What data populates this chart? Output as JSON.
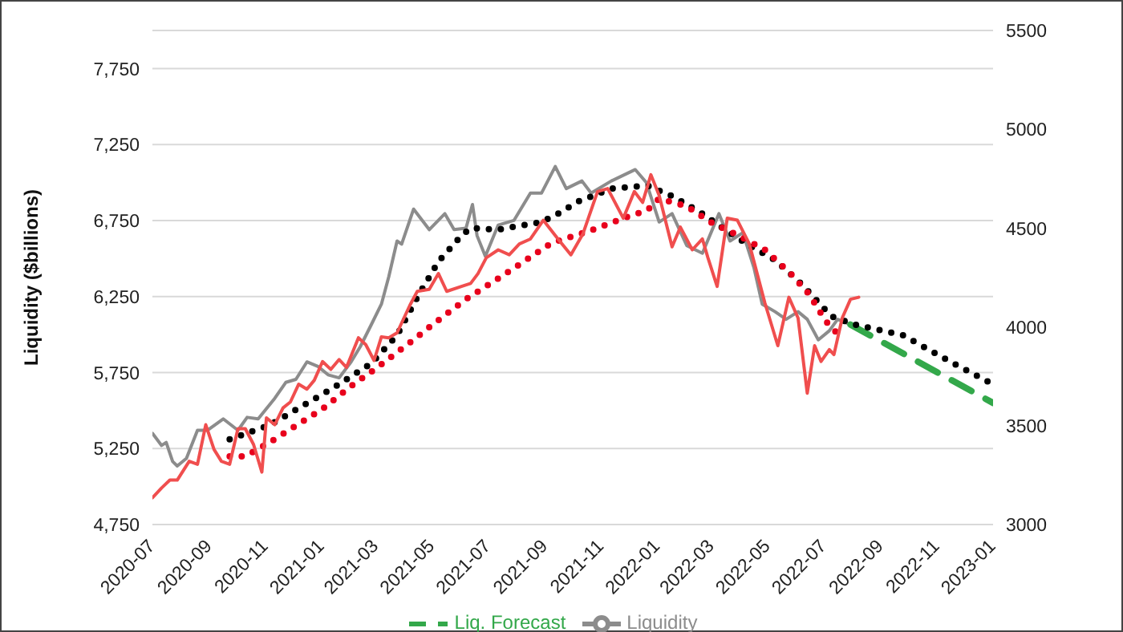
{
  "chart_data": {
    "type": "line",
    "ylabel": "Liquidity ($billions)",
    "xlim": [
      "2020-07",
      "2023-01"
    ],
    "xticks": [
      "2020-07",
      "2020-09",
      "2020-11",
      "2021-01",
      "2021-03",
      "2021-05",
      "2021-07",
      "2021-09",
      "2021-11",
      "2022-01",
      "2022-03",
      "2022-05",
      "2022-07",
      "2022-09",
      "2022-11",
      "2023-01"
    ],
    "ylim": [
      4750,
      8000
    ],
    "yticks": [
      {
        "value": 4750,
        "label": "4,750"
      },
      {
        "value": 5250,
        "label": "5,250"
      },
      {
        "value": 5750,
        "label": "5,750"
      },
      {
        "value": 6250,
        "label": "6,250"
      },
      {
        "value": 6750,
        "label": "6,750"
      },
      {
        "value": 7250,
        "label": "7,250"
      },
      {
        "value": 7750,
        "label": "7,750"
      }
    ],
    "y2lim": [
      3000,
      5500
    ],
    "y2ticks": [
      3000,
      3500,
      4000,
      4500,
      5000,
      5500
    ],
    "grid": "y",
    "legend": "bottom",
    "series": [
      {
        "name": "Liquidity",
        "color": "#8c8c8c",
        "line_style": "solid",
        "x": [
          "2020-07-01",
          "2020-07-11",
          "2020-07-16",
          "2020-07-23",
          "2020-07-28",
          "2020-08-07",
          "2020-08-19",
          "2020-08-30",
          "2020-09-16",
          "2020-10-02",
          "2020-10-12",
          "2020-10-24",
          "2020-11-11",
          "2020-11-23",
          "2020-12-04",
          "2020-12-16",
          "2020-12-28",
          "2021-01-08",
          "2021-01-20",
          "2021-02-02",
          "2021-02-12",
          "2021-02-24",
          "2021-03-07",
          "2021-03-15",
          "2021-03-24",
          "2021-03-29",
          "2021-04-11",
          "2021-04-28",
          "2021-05-15",
          "2021-05-25",
          "2021-06-07",
          "2021-06-14",
          "2021-06-19",
          "2021-06-28",
          "2021-07-12",
          "2021-07-29",
          "2021-08-16",
          "2021-08-28",
          "2021-09-12",
          "2021-09-24",
          "2021-10-11",
          "2021-10-21",
          "2021-11-12",
          "2021-12-08",
          "2021-12-20",
          "2022-01-03",
          "2022-01-17",
          "2022-02-02",
          "2022-02-19",
          "2022-03-09",
          "2022-03-21",
          "2022-04-04",
          "2022-04-16",
          "2022-04-25",
          "2022-05-09",
          "2022-05-21",
          "2022-06-03",
          "2022-06-13",
          "2022-06-25",
          "2022-07-07",
          "2022-07-16",
          "2022-07-30"
        ],
        "values": [
          5350,
          5270,
          5290,
          5165,
          5135,
          5185,
          5370,
          5370,
          5445,
          5370,
          5455,
          5445,
          5580,
          5685,
          5705,
          5820,
          5790,
          5735,
          5715,
          5820,
          5920,
          6065,
          6200,
          6380,
          6615,
          6595,
          6825,
          6690,
          6795,
          6690,
          6700,
          6855,
          6650,
          6515,
          6720,
          6750,
          6930,
          6930,
          7105,
          6960,
          7010,
          6930,
          7010,
          7085,
          7000,
          6740,
          6795,
          6585,
          6535,
          6795,
          6615,
          6670,
          6440,
          6200,
          6150,
          6100,
          6150,
          6100,
          5965,
          6025,
          6100,
          6065
        ]
      },
      {
        "name": "Liq. Forecast",
        "color": "#33a84a",
        "line_style": "dashed",
        "x": [
          "2022-07-30",
          "2023-01-01"
        ],
        "values": [
          6065,
          5550
        ]
      },
      {
        "color": "#000000",
        "line_style": "dotted",
        "x": [
          "2020-09-23",
          "2020-11-06",
          "2020-12-04",
          "2021-01-14",
          "2021-02-24",
          "2021-03-24",
          "2021-04-16",
          "2021-05-08",
          "2021-06-02",
          "2021-06-12",
          "2021-07-12",
          "2021-08-28",
          "2021-09-15",
          "2021-10-07",
          "2021-11-12",
          "2021-12-21",
          "2022-01-19",
          "2022-02-19",
          "2022-03-13",
          "2022-04-11",
          "2022-05-09",
          "2022-06-08",
          "2022-07-09",
          "2022-08-04",
          "2022-09-25",
          "2022-11-16",
          "2022-12-28"
        ],
        "values": [
          5310,
          5405,
          5505,
          5650,
          5810,
          5995,
          6255,
          6480,
          6650,
          6700,
          6690,
          6740,
          6795,
          6875,
          6960,
          6980,
          6905,
          6795,
          6700,
          6585,
          6490,
          6325,
          6120,
          6065,
          5995,
          5820,
          5685
        ]
      },
      {
        "color": "#e8001c",
        "line_style": "dotted",
        "axis": "y2",
        "x": [
          "2020-09-23",
          "2020-10-10",
          "2020-11-07",
          "2020-12-04",
          "2021-01-02",
          "2021-02-02",
          "2021-03-01",
          "2021-04-04",
          "2021-05-04",
          "2021-06-07",
          "2021-07-07",
          "2021-08-07",
          "2021-09-08",
          "2021-10-19",
          "2021-11-25",
          "2021-12-21",
          "2022-01-03",
          "2022-02-02",
          "2022-02-28",
          "2022-03-29",
          "2022-04-28",
          "2022-05-26",
          "2022-06-15",
          "2022-07-03",
          "2022-07-16"
        ],
        "values": [
          3345,
          3345,
          3420,
          3500,
          3585,
          3700,
          3790,
          3910,
          4020,
          4140,
          4230,
          4325,
          4425,
          4485,
          4550,
          4590,
          4650,
          4610,
          4530,
          4465,
          4390,
          4270,
          4165,
          4030,
          3965
        ]
      },
      {
        "color": "#f04e4e",
        "line_style": "solid",
        "axis": "y2",
        "x": [
          "2020-07-01",
          "2020-07-11",
          "2020-07-20",
          "2020-07-28",
          "2020-08-10",
          "2020-08-19",
          "2020-08-28",
          "2020-09-06",
          "2020-09-14",
          "2020-09-23",
          "2020-10-02",
          "2020-10-10",
          "2020-10-19",
          "2020-10-28",
          "2020-11-02",
          "2020-11-11",
          "2020-11-20",
          "2020-11-28",
          "2020-12-07",
          "2020-12-16",
          "2020-12-24",
          "2021-01-02",
          "2021-01-11",
          "2021-01-20",
          "2021-01-28",
          "2021-02-10",
          "2021-02-18",
          "2021-02-27",
          "2021-03-07",
          "2021-03-15",
          "2021-03-24",
          "2021-04-07",
          "2021-04-15",
          "2021-04-28",
          "2021-05-08",
          "2021-05-17",
          "2021-06-02",
          "2021-06-12",
          "2021-06-20",
          "2021-06-29",
          "2021-07-12",
          "2021-07-24",
          "2021-08-04",
          "2021-08-16",
          "2021-08-30",
          "2021-09-15",
          "2021-09-29",
          "2021-10-12",
          "2021-10-28",
          "2021-11-08",
          "2021-11-25",
          "2021-12-07",
          "2021-12-16",
          "2021-12-25",
          "2022-01-03",
          "2022-01-17",
          "2022-01-26",
          "2022-02-08",
          "2022-02-19",
          "2022-02-25",
          "2022-03-07",
          "2022-03-18",
          "2022-03-29",
          "2022-04-11",
          "2022-04-28",
          "2022-05-12",
          "2022-05-24",
          "2022-06-03",
          "2022-06-13",
          "2022-06-21",
          "2022-06-28",
          "2022-07-07",
          "2022-07-12",
          "2022-07-21",
          "2022-07-30",
          "2022-08-08"
        ],
        "values": [
          3135,
          3185,
          3225,
          3225,
          3320,
          3305,
          3505,
          3380,
          3320,
          3305,
          3485,
          3485,
          3405,
          3265,
          3540,
          3505,
          3590,
          3620,
          3710,
          3685,
          3730,
          3825,
          3785,
          3835,
          3795,
          3945,
          3910,
          3830,
          3950,
          3945,
          3970,
          4110,
          4180,
          4190,
          4270,
          4180,
          4205,
          4220,
          4270,
          4350,
          4390,
          4365,
          4420,
          4445,
          4540,
          4445,
          4365,
          4470,
          4685,
          4700,
          4550,
          4685,
          4630,
          4770,
          4665,
          4405,
          4505,
          4390,
          4445,
          4350,
          4205,
          4550,
          4540,
          4420,
          4120,
          3905,
          4150,
          4045,
          3665,
          3905,
          3825,
          3885,
          3860,
          4045,
          4140,
          4150
        ]
      }
    ]
  }
}
